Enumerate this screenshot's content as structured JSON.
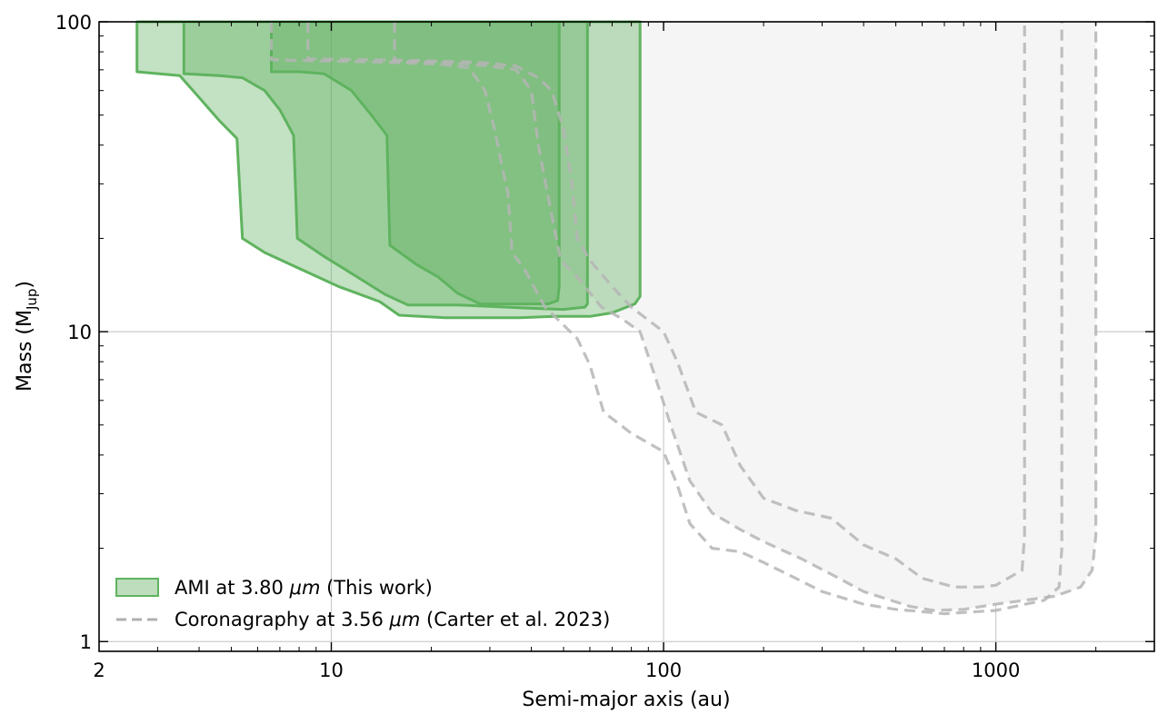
{
  "chart_data": {
    "type": "area",
    "xlabel": "Semi-major axis (au)",
    "ylabel_main": "Mass (M",
    "ylabel_sub": "Jup",
    "ylabel_close": ")",
    "xscale": "log",
    "yscale": "log",
    "xlim": [
      2,
      3000
    ],
    "ylim": [
      0.93,
      100
    ],
    "x_tick_labels": [
      {
        "value": 2,
        "label": "2"
      },
      {
        "value": 10,
        "label": "10"
      },
      {
        "value": 100,
        "label": "100"
      },
      {
        "value": 1000,
        "label": "1000"
      }
    ],
    "y_tick_labels": [
      {
        "value": 1,
        "label": "1"
      },
      {
        "value": 10,
        "label": "10"
      },
      {
        "value": 100,
        "label": "100"
      }
    ],
    "grid": true,
    "legend_position": "lower-left",
    "legend": [
      {
        "label": "AMI at 3.80 ",
        "math": "μm",
        "rest": " (This work)"
      },
      {
        "label": "Coronagraphy at 3.56 ",
        "math": "μm",
        "rest": " (Carter et al. 2023)"
      }
    ],
    "colors": {
      "ami_fill": "#59ab59",
      "ami_edge": "#5fb35f",
      "coro_line": "#b5b5b5",
      "coro_fill": "#f5f5f5",
      "grid": "#cccccc"
    },
    "series": [
      {
        "group": "AMI",
        "contour": 1,
        "points": [
          [
            2.6,
            100
          ],
          [
            2.6,
            69
          ],
          [
            3.5,
            67
          ],
          [
            4.0,
            57
          ],
          [
            4.6,
            48
          ],
          [
            5.2,
            42
          ],
          [
            5.4,
            20
          ],
          [
            6.3,
            18
          ],
          [
            8.0,
            16
          ],
          [
            10.5,
            14
          ],
          [
            14,
            12.5
          ],
          [
            16,
            11.3
          ],
          [
            22,
            11.1
          ],
          [
            37,
            11.1
          ],
          [
            47,
            11.2
          ],
          [
            60,
            11.2
          ],
          [
            70,
            11.5
          ],
          [
            82,
            12.3
          ],
          [
            85,
            13
          ],
          [
            85,
            100
          ]
        ]
      },
      {
        "group": "AMI",
        "contour": 2,
        "points": [
          [
            3.6,
            100
          ],
          [
            3.6,
            68
          ],
          [
            4.6,
            67
          ],
          [
            5.4,
            66
          ],
          [
            6.3,
            60
          ],
          [
            7.0,
            52
          ],
          [
            7.7,
            43
          ],
          [
            7.9,
            20
          ],
          [
            9.5,
            17.5
          ],
          [
            12,
            15
          ],
          [
            14.5,
            13.2
          ],
          [
            17,
            12.2
          ],
          [
            24,
            12.2
          ],
          [
            40,
            11.9
          ],
          [
            50,
            11.8
          ],
          [
            58,
            12
          ],
          [
            59,
            12.3
          ],
          [
            59,
            100
          ]
        ]
      },
      {
        "group": "AMI",
        "contour": 3,
        "points": [
          [
            6.6,
            100
          ],
          [
            6.6,
            69
          ],
          [
            8.0,
            69
          ],
          [
            9.5,
            68
          ],
          [
            11.5,
            60
          ],
          [
            13.2,
            50
          ],
          [
            14.7,
            43
          ],
          [
            15.0,
            19
          ],
          [
            18,
            16.5
          ],
          [
            21,
            15
          ],
          [
            24,
            13.3
          ],
          [
            28,
            12.3
          ],
          [
            35,
            12.3
          ],
          [
            45,
            12.3
          ],
          [
            48,
            12.6
          ],
          [
            48.5,
            14
          ],
          [
            48.5,
            100
          ]
        ]
      },
      {
        "group": "Coronagraphy",
        "contour": 1,
        "points": [
          [
            6.6,
            100
          ],
          [
            6.6,
            75.5
          ],
          [
            8,
            75
          ],
          [
            15,
            74
          ],
          [
            21,
            73
          ],
          [
            26,
            71
          ],
          [
            29,
            60
          ],
          [
            31,
            45
          ],
          [
            32.5,
            35
          ],
          [
            34,
            28
          ],
          [
            35,
            18
          ],
          [
            38,
            16
          ],
          [
            44,
            12
          ],
          [
            50,
            10.5
          ],
          [
            55,
            9.5
          ],
          [
            60,
            7.8
          ],
          [
            66,
            5.5
          ],
          [
            80,
            4.7
          ],
          [
            100,
            4.1
          ],
          [
            110,
            3.2
          ],
          [
            120,
            2.4
          ],
          [
            140,
            2.0
          ],
          [
            170,
            1.95
          ],
          [
            200,
            1.8
          ],
          [
            250,
            1.6
          ],
          [
            300,
            1.45
          ],
          [
            400,
            1.32
          ],
          [
            500,
            1.27
          ],
          [
            700,
            1.23
          ],
          [
            1000,
            1.26
          ],
          [
            1400,
            1.36
          ],
          [
            1550,
            1.5
          ],
          [
            1580,
            2.0
          ],
          [
            1580,
            100
          ]
        ]
      },
      {
        "group": "Coronagraphy",
        "contour": 2,
        "points": [
          [
            8.5,
            100
          ],
          [
            8.5,
            76
          ],
          [
            12,
            75.5
          ],
          [
            18,
            75
          ],
          [
            28,
            74
          ],
          [
            36,
            72
          ],
          [
            42,
            66
          ],
          [
            46,
            60
          ],
          [
            50,
            45
          ],
          [
            53,
            30
          ],
          [
            55,
            20
          ],
          [
            60,
            17
          ],
          [
            70,
            14
          ],
          [
            80,
            12
          ],
          [
            100,
            10
          ],
          [
            110,
            8
          ],
          [
            125,
            5.5
          ],
          [
            150,
            5
          ],
          [
            170,
            3.7
          ],
          [
            200,
            2.9
          ],
          [
            250,
            2.65
          ],
          [
            320,
            2.5
          ],
          [
            400,
            2.05
          ],
          [
            500,
            1.85
          ],
          [
            600,
            1.6
          ],
          [
            750,
            1.5
          ],
          [
            900,
            1.5
          ],
          [
            1000,
            1.52
          ],
          [
            1200,
            1.7
          ],
          [
            1220,
            2.2
          ],
          [
            1220,
            100
          ]
        ]
      },
      {
        "group": "Coronagraphy",
        "contour": 3,
        "points": [
          [
            15.5,
            100
          ],
          [
            15.5,
            74.5
          ],
          [
            22,
            74
          ],
          [
            30,
            72
          ],
          [
            36,
            70
          ],
          [
            40,
            60
          ],
          [
            42,
            40
          ],
          [
            45,
            27
          ],
          [
            49,
            17
          ],
          [
            55,
            15
          ],
          [
            65,
            12
          ],
          [
            75,
            11
          ],
          [
            85,
            10
          ],
          [
            95,
            7
          ],
          [
            105,
            5
          ],
          [
            120,
            3.3
          ],
          [
            140,
            2.6
          ],
          [
            170,
            2.3
          ],
          [
            200,
            2.1
          ],
          [
            260,
            1.85
          ],
          [
            330,
            1.62
          ],
          [
            400,
            1.45
          ],
          [
            550,
            1.3
          ],
          [
            650,
            1.26
          ],
          [
            800,
            1.27
          ],
          [
            1000,
            1.32
          ],
          [
            1500,
            1.4
          ],
          [
            1800,
            1.5
          ],
          [
            1950,
            1.7
          ],
          [
            2000,
            2.2
          ],
          [
            2000,
            100
          ]
        ]
      }
    ]
  }
}
